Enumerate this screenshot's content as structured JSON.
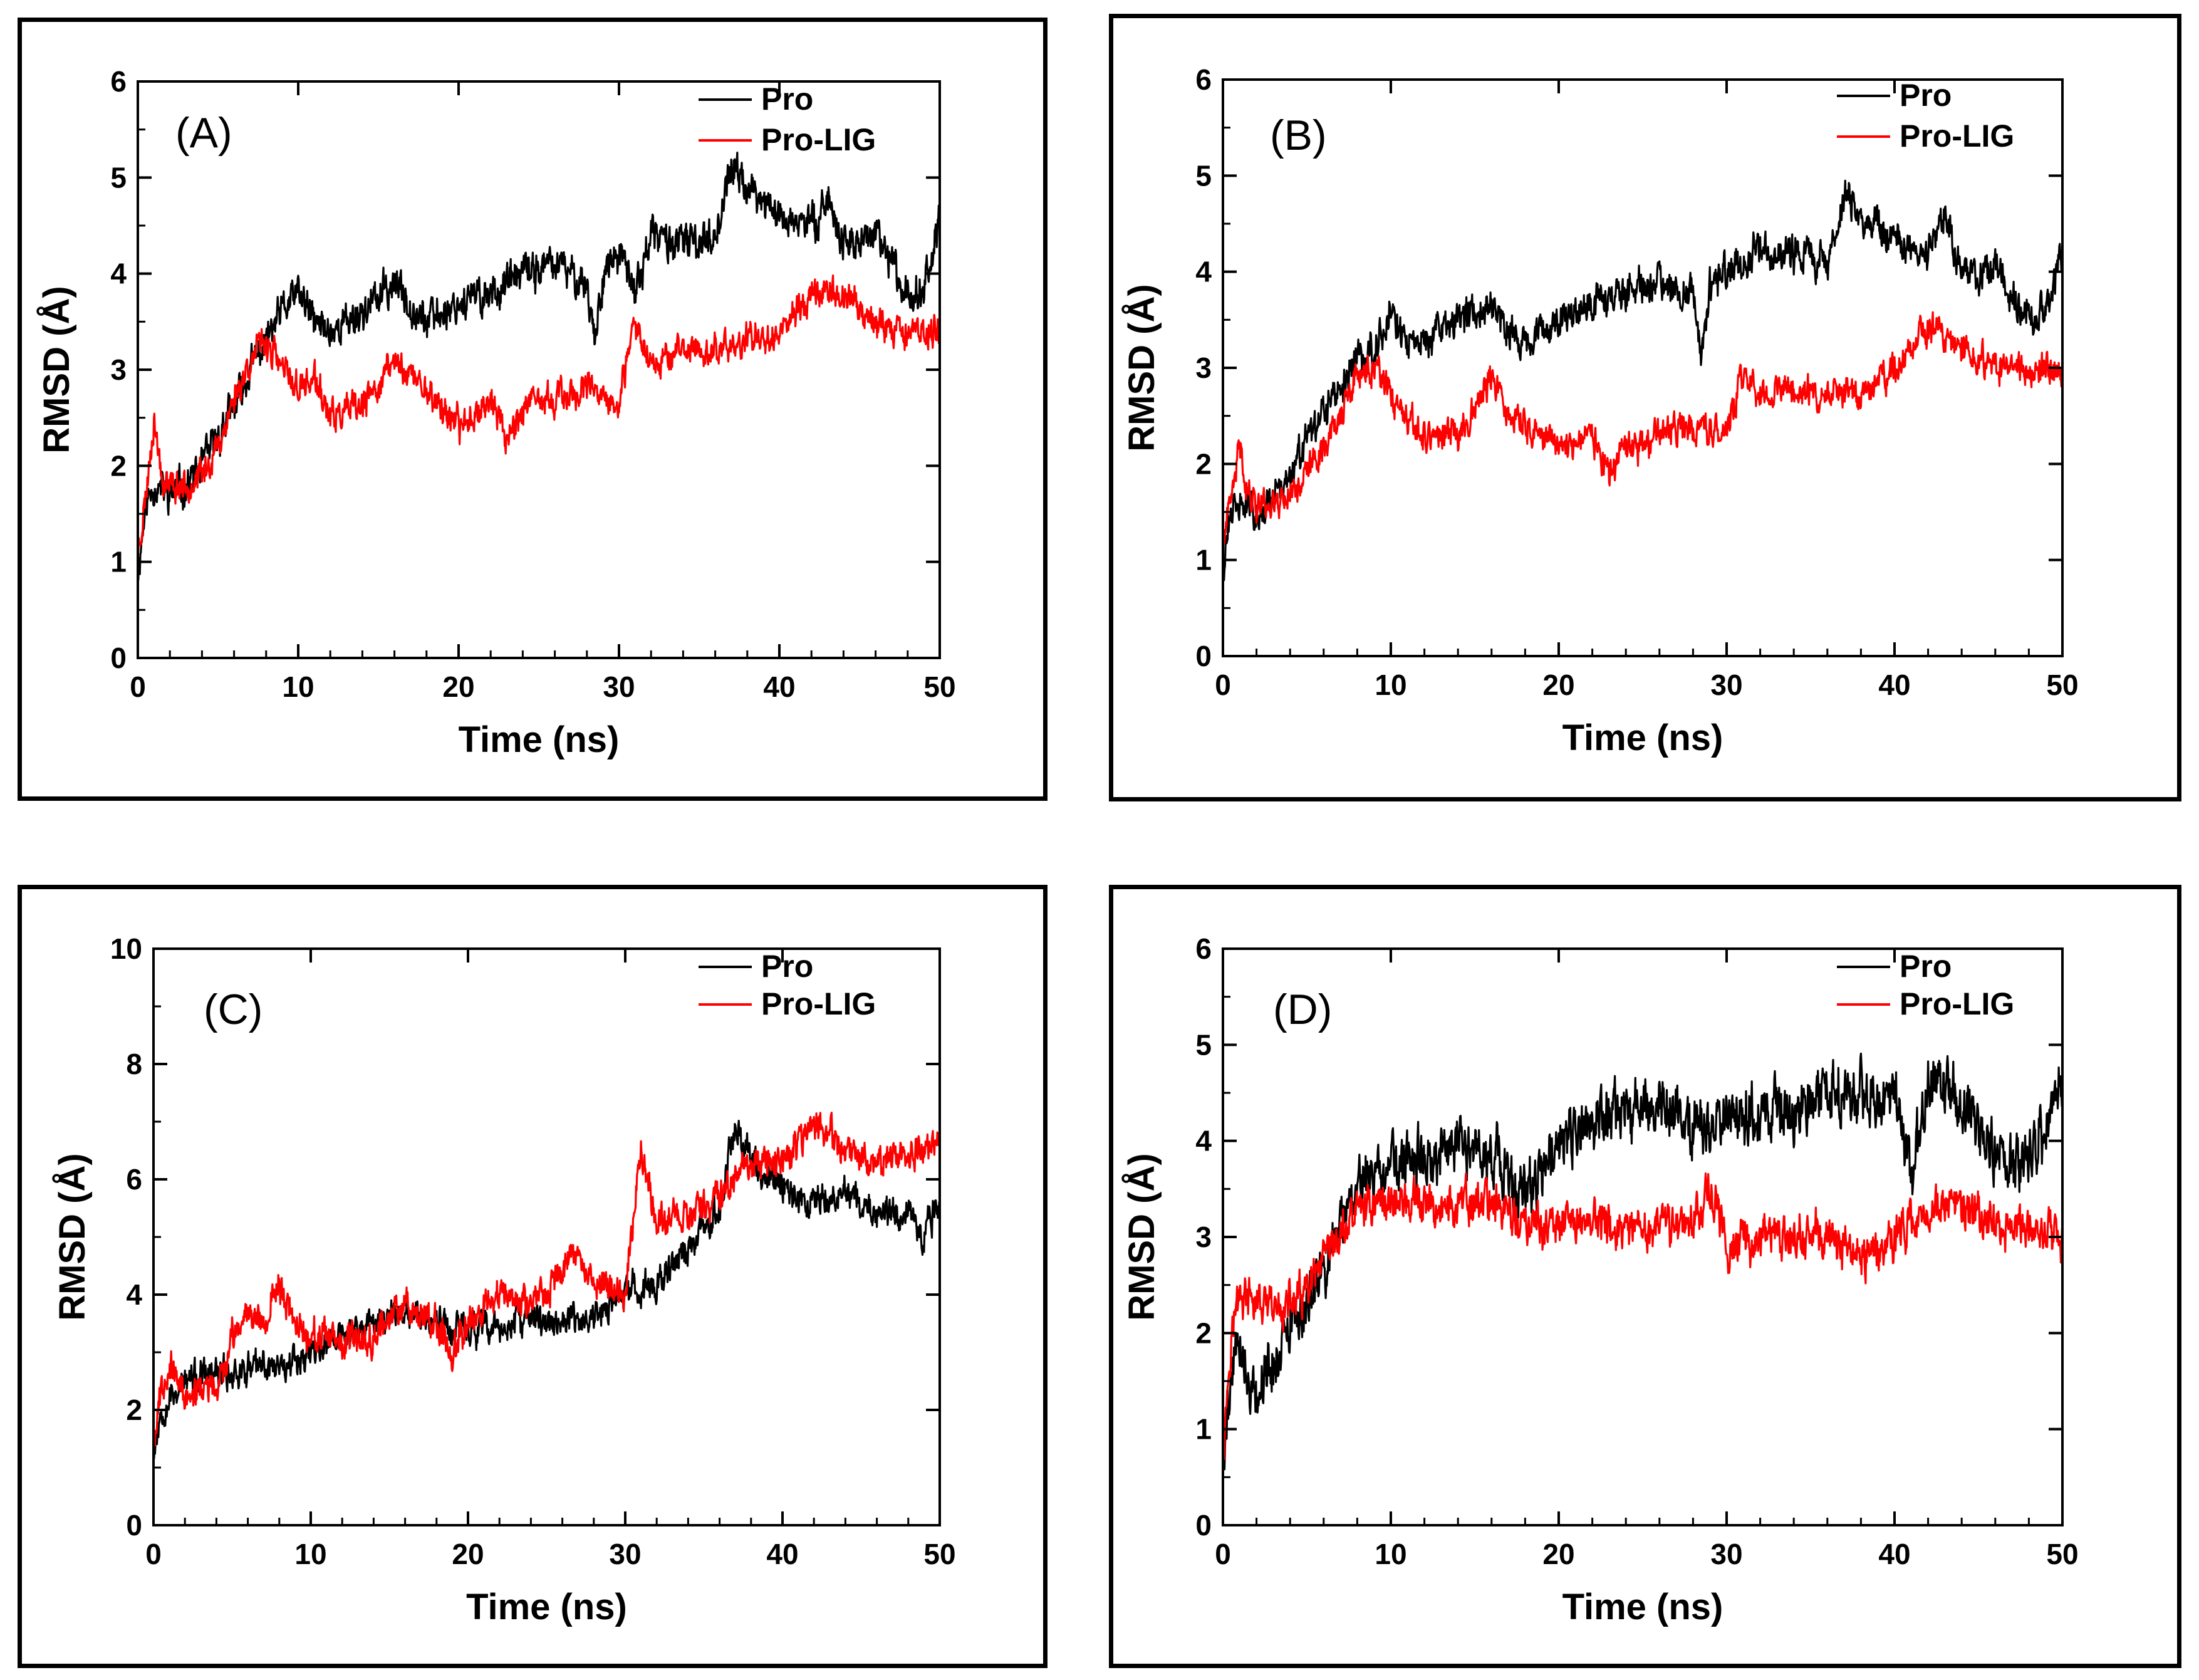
{
  "chart_data": [
    {
      "type": "line",
      "panel_label": "(A)",
      "xlabel": "Time (ns)",
      "ylabel": "RMSD (Å)",
      "xlim": [
        0,
        50
      ],
      "ylim": [
        0,
        6
      ],
      "xticks": [
        "0",
        "10",
        "20",
        "30",
        "40",
        "50"
      ],
      "yticks": [
        "0",
        "1",
        "2",
        "3",
        "4",
        "5",
        "6"
      ],
      "legend": [
        "Pro",
        "Pro-LIG"
      ],
      "series": [
        {
          "name": "Pro",
          "color": "#000000",
          "noise": 0.14,
          "seed": 11,
          "x": [
            0,
            0.5,
            1,
            2,
            3,
            4,
            5,
            6,
            7,
            8,
            9,
            10,
            11,
            12,
            14,
            16,
            18,
            20,
            22,
            24,
            26,
            28,
            28.5,
            29,
            30,
            31,
            32,
            34,
            36,
            37,
            38,
            40,
            42,
            43,
            44,
            46,
            48,
            49,
            50
          ],
          "values": [
            0.9,
            1.6,
            1.8,
            1.7,
            1.8,
            2.0,
            2.3,
            2.6,
            3.0,
            3.3,
            3.6,
            3.8,
            3.5,
            3.4,
            3.6,
            3.9,
            3.5,
            3.7,
            3.8,
            4.0,
            4.1,
            3.9,
            3.3,
            4.0,
            4.2,
            3.8,
            4.4,
            4.3,
            4.4,
            5.1,
            4.9,
            4.6,
            4.5,
            4.8,
            4.3,
            4.4,
            3.8,
            3.9,
            4.5
          ]
        },
        {
          "name": "Pro-LIG",
          "color": "#ff0000",
          "noise": 0.12,
          "seed": 23,
          "x": [
            0,
            0.5,
            1,
            1.5,
            2,
            3,
            4,
            5,
            6,
            7,
            8,
            9,
            10,
            11,
            12,
            14,
            16,
            18,
            20,
            22,
            23,
            24,
            26,
            28,
            30,
            31,
            32,
            34,
            36,
            38,
            40,
            42,
            44,
            46,
            48,
            50
          ],
          "values": [
            1.1,
            1.7,
            2.5,
            1.9,
            1.8,
            1.8,
            1.9,
            2.2,
            2.7,
            3.1,
            3.3,
            3.0,
            2.8,
            2.9,
            2.5,
            2.6,
            3.1,
            2.8,
            2.4,
            2.7,
            2.3,
            2.6,
            2.7,
            2.8,
            2.6,
            3.5,
            3.1,
            3.2,
            3.2,
            3.3,
            3.4,
            3.8,
            3.8,
            3.5,
            3.4,
            3.4
          ]
        }
      ]
    },
    {
      "type": "line",
      "panel_label": "(B)",
      "xlabel": "Time (ns)",
      "ylabel": "RMSD (Å)",
      "xlim": [
        0,
        50
      ],
      "ylim": [
        0,
        6
      ],
      "xticks": [
        "0",
        "10",
        "20",
        "30",
        "40",
        "50"
      ],
      "yticks": [
        "0",
        "1",
        "2",
        "3",
        "4",
        "5",
        "6"
      ],
      "legend": [
        "Pro",
        "Pro-LIG"
      ],
      "series": [
        {
          "name": "Pro",
          "color": "#000000",
          "noise": 0.14,
          "seed": 31,
          "x": [
            0,
            0.5,
            1,
            2,
            3,
            4,
            5,
            6,
            7,
            8,
            9,
            10,
            11,
            12,
            14,
            16,
            18,
            20,
            22,
            24,
            26,
            28,
            28.5,
            29,
            30,
            32,
            34,
            36,
            37,
            38,
            40,
            42,
            43,
            44,
            46,
            48,
            49,
            50
          ],
          "values": [
            0.9,
            1.5,
            1.6,
            1.5,
            1.6,
            1.9,
            2.2,
            2.5,
            2.8,
            3.1,
            3.2,
            3.6,
            3.2,
            3.3,
            3.5,
            3.7,
            3.2,
            3.5,
            3.7,
            3.8,
            3.9,
            3.8,
            3.1,
            3.8,
            4.0,
            4.2,
            4.2,
            4.1,
            4.8,
            4.6,
            4.3,
            4.2,
            4.6,
            4.0,
            4.0,
            3.5,
            3.6,
            4.2
          ]
        },
        {
          "name": "Pro-LIG",
          "color": "#ff0000",
          "noise": 0.12,
          "seed": 41,
          "x": [
            0,
            0.5,
            1,
            1.5,
            2,
            3,
            4,
            5,
            6,
            7,
            8,
            9,
            10,
            11,
            12,
            14,
            16,
            17,
            18,
            20,
            22,
            23,
            24,
            26,
            28,
            30,
            31,
            32,
            34,
            36,
            38,
            40,
            42,
            44,
            46,
            48,
            50
          ],
          "values": [
            1.2,
            1.6,
            2.2,
            1.7,
            1.6,
            1.6,
            1.7,
            1.9,
            2.2,
            2.5,
            2.9,
            3.0,
            2.7,
            2.4,
            2.3,
            2.3,
            2.9,
            2.5,
            2.4,
            2.2,
            2.3,
            1.9,
            2.1,
            2.3,
            2.4,
            2.3,
            3.0,
            2.7,
            2.8,
            2.7,
            2.7,
            3.0,
            3.4,
            3.2,
            3.0,
            3.0,
            3.0
          ]
        }
      ]
    },
    {
      "type": "line",
      "panel_label": "(C)",
      "xlabel": "Time (ns)",
      "ylabel": "RMSD (Å)",
      "xlim": [
        0,
        50
      ],
      "ylim": [
        0,
        10
      ],
      "xticks": [
        "0",
        "10",
        "20",
        "30",
        "40",
        "50"
      ],
      "yticks": [
        "0",
        "2",
        "4",
        "6",
        "8",
        "10"
      ],
      "legend": [
        "Pro",
        "Pro-LIG"
      ],
      "series": [
        {
          "name": "Pro",
          "color": "#000000",
          "noise": 0.2,
          "seed": 53,
          "x": [
            0,
            0.5,
            1,
            2,
            4,
            6,
            8,
            10,
            12,
            14,
            16,
            18,
            20,
            22,
            24,
            26,
            28,
            30,
            32,
            34,
            36,
            37,
            38,
            40,
            42,
            44,
            46,
            48,
            49,
            50
          ],
          "values": [
            1.3,
            2.0,
            2.2,
            2.5,
            2.6,
            2.7,
            2.8,
            3.0,
            3.3,
            3.5,
            3.8,
            3.5,
            3.4,
            3.4,
            3.6,
            3.5,
            3.6,
            4.0,
            4.2,
            4.8,
            5.5,
            7.0,
            6.3,
            5.8,
            5.6,
            5.8,
            5.4,
            5.4,
            5.0,
            5.6
          ]
        },
        {
          "name": "Pro-LIG",
          "color": "#ff0000",
          "noise": 0.2,
          "seed": 67,
          "x": [
            0,
            0.5,
            1,
            2,
            3,
            4,
            5,
            6,
            7,
            8,
            9,
            10,
            12,
            14,
            16,
            18,
            19,
            20,
            22,
            24,
            26,
            27,
            28,
            30,
            31,
            32,
            34,
            36,
            38,
            40,
            42,
            44,
            46,
            48,
            50
          ],
          "values": [
            1.5,
            2.4,
            2.8,
            2.2,
            2.4,
            2.3,
            3.2,
            3.8,
            3.5,
            4.2,
            3.5,
            3.3,
            3.1,
            3.3,
            3.9,
            3.5,
            3.0,
            3.6,
            4.0,
            3.8,
            4.4,
            4.8,
            4.2,
            4.0,
            6.5,
            5.3,
            5.4,
            5.7,
            6.3,
            6.3,
            7.0,
            6.5,
            6.3,
            6.4,
            6.6
          ]
        }
      ]
    },
    {
      "type": "line",
      "panel_label": "(D)",
      "xlabel": "Time (ns)",
      "ylabel": "RMSD (Å)",
      "xlim": [
        0,
        50
      ],
      "ylim": [
        0,
        6
      ],
      "xticks": [
        "0",
        "10",
        "20",
        "30",
        "40",
        "50"
      ],
      "yticks": [
        "0",
        "1",
        "2",
        "3",
        "4",
        "5",
        "6"
      ],
      "legend": [
        "Pro",
        "Pro-LIG"
      ],
      "series": [
        {
          "name": "Pro",
          "color": "#000000",
          "noise": 0.22,
          "seed": 79,
          "x": [
            0,
            0.5,
            1,
            1.5,
            2,
            3,
            4,
            5,
            6,
            7,
            8,
            10,
            12,
            14,
            16,
            18,
            20,
            22,
            24,
            26,
            28,
            30,
            32,
            34,
            36,
            38,
            40,
            41,
            42,
            44,
            46,
            48,
            50
          ],
          "values": [
            0.6,
            1.6,
            2.0,
            1.5,
            1.4,
            1.7,
            2.0,
            2.3,
            2.7,
            3.1,
            3.6,
            3.7,
            3.8,
            4.0,
            3.8,
            3.4,
            3.9,
            4.2,
            4.3,
            4.4,
            4.1,
            4.3,
            4.3,
            4.3,
            4.5,
            4.5,
            4.5,
            3.6,
            4.6,
            4.4,
            3.9,
            3.8,
            4.5
          ]
        },
        {
          "name": "Pro-LIG",
          "color": "#ff0000",
          "noise": 0.16,
          "seed": 97,
          "x": [
            0,
            0.5,
            1,
            2,
            3,
            4,
            5,
            6,
            7,
            8,
            10,
            12,
            14,
            16,
            18,
            20,
            22,
            24,
            26,
            28,
            29,
            30,
            32,
            34,
            36,
            38,
            40,
            42,
            44,
            46,
            48,
            50
          ],
          "values": [
            0.8,
            2.0,
            2.4,
            2.3,
            2.2,
            2.3,
            2.4,
            2.7,
            3.0,
            3.3,
            3.4,
            3.3,
            3.3,
            3.4,
            3.1,
            3.1,
            3.2,
            3.0,
            3.1,
            3.2,
            3.5,
            2.9,
            3.0,
            3.0,
            3.0,
            2.8,
            3.0,
            3.3,
            3.3,
            3.1,
            3.1,
            3.0
          ]
        }
      ]
    }
  ]
}
